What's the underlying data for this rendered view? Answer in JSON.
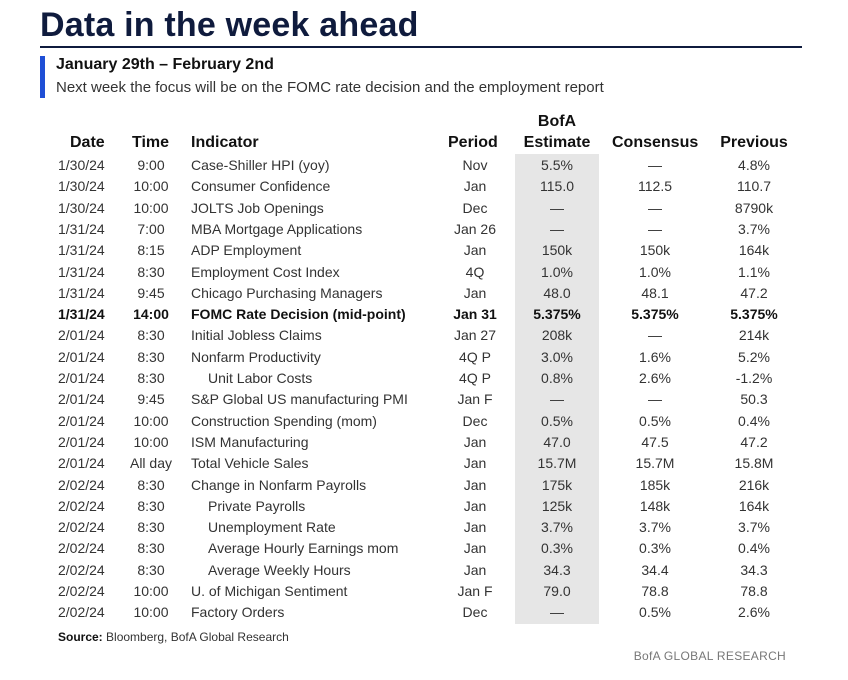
{
  "header": {
    "title": "Data in the week ahead",
    "date_range": "January 29th – February 2nd",
    "subtitle": "Next week the focus will be on the FOMC rate decision and the employment report"
  },
  "columns": {
    "date": "Date",
    "time": "Time",
    "indicator": "Indicator",
    "period": "Period",
    "bofa_line1": "BofA",
    "bofa_line2": "Estimate",
    "consensus": "Consensus",
    "previous": "Previous"
  },
  "rows": [
    {
      "date": "1/30/24",
      "time": "9:00",
      "indicator": "Case-Shiller HPI (yoy)",
      "period": "Nov",
      "bofa": "5.5%",
      "consensus": "—",
      "previous": "4.8%"
    },
    {
      "date": "1/30/24",
      "time": "10:00",
      "indicator": "Consumer Confidence",
      "period": "Jan",
      "bofa": "115.0",
      "consensus": "112.5",
      "previous": "110.7"
    },
    {
      "date": "1/30/24",
      "time": "10:00",
      "indicator": "JOLTS Job Openings",
      "period": "Dec",
      "bofa": "—",
      "consensus": "—",
      "previous": "8790k"
    },
    {
      "date": "1/31/24",
      "time": "7:00",
      "indicator": "MBA Mortgage Applications",
      "period": "Jan 26",
      "bofa": "—",
      "consensus": "—",
      "previous": "3.7%"
    },
    {
      "date": "1/31/24",
      "time": "8:15",
      "indicator": "ADP Employment",
      "period": "Jan",
      "bofa": "150k",
      "consensus": "150k",
      "previous": "164k"
    },
    {
      "date": "1/31/24",
      "time": "8:30",
      "indicator": "Employment Cost Index",
      "period": "4Q",
      "bofa": "1.0%",
      "consensus": "1.0%",
      "previous": "1.1%"
    },
    {
      "date": "1/31/24",
      "time": "9:45",
      "indicator": "Chicago Purchasing Managers",
      "period": "Jan",
      "bofa": "48.0",
      "consensus": "48.1",
      "previous": "47.2"
    },
    {
      "date": "1/31/24",
      "time": "14:00",
      "indicator": "FOMC Rate Decision (mid-point)",
      "period": "Jan 31",
      "bofa": "5.375%",
      "consensus": "5.375%",
      "previous": "5.375%",
      "bold": true
    },
    {
      "date": "2/01/24",
      "time": "8:30",
      "indicator": "Initial Jobless Claims",
      "period": "Jan 27",
      "bofa": "208k",
      "consensus": "—",
      "previous": "214k"
    },
    {
      "date": "2/01/24",
      "time": "8:30",
      "indicator": "Nonfarm Productivity",
      "period": "4Q P",
      "bofa": "3.0%",
      "consensus": "1.6%",
      "previous": "5.2%"
    },
    {
      "date": "2/01/24",
      "time": "8:30",
      "indicator": "Unit Labor Costs",
      "period": "4Q P",
      "bofa": "0.8%",
      "consensus": "2.6%",
      "previous": "-1.2%",
      "indent": true
    },
    {
      "date": "2/01/24",
      "time": "9:45",
      "indicator": "S&P Global US manufacturing PMI",
      "period": "Jan F",
      "bofa": "—",
      "consensus": "—",
      "previous": "50.3"
    },
    {
      "date": "2/01/24",
      "time": "10:00",
      "indicator": "Construction Spending (mom)",
      "period": "Dec",
      "bofa": "0.5%",
      "consensus": "0.5%",
      "previous": "0.4%"
    },
    {
      "date": "2/01/24",
      "time": "10:00",
      "indicator": "ISM Manufacturing",
      "period": "Jan",
      "bofa": "47.0",
      "consensus": "47.5",
      "previous": "47.2"
    },
    {
      "date": "2/01/24",
      "time": "All day",
      "indicator": "Total Vehicle Sales",
      "period": "Jan",
      "bofa": "15.7M",
      "consensus": "15.7M",
      "previous": "15.8M"
    },
    {
      "date": "2/02/24",
      "time": "8:30",
      "indicator": "Change in Nonfarm Payrolls",
      "period": "Jan",
      "bofa": "175k",
      "consensus": "185k",
      "previous": "216k"
    },
    {
      "date": "2/02/24",
      "time": "8:30",
      "indicator": "Private Payrolls",
      "period": "Jan",
      "bofa": "125k",
      "consensus": "148k",
      "previous": "164k",
      "indent": true
    },
    {
      "date": "2/02/24",
      "time": "8:30",
      "indicator": "Unemployment Rate",
      "period": "Jan",
      "bofa": "3.7%",
      "consensus": "3.7%",
      "previous": "3.7%",
      "indent": true
    },
    {
      "date": "2/02/24",
      "time": "8:30",
      "indicator": "Average Hourly Earnings mom",
      "period": "Jan",
      "bofa": "0.3%",
      "consensus": "0.3%",
      "previous": "0.4%",
      "indent": true
    },
    {
      "date": "2/02/24",
      "time": "8:30",
      "indicator": "Average Weekly Hours",
      "period": "Jan",
      "bofa": "34.3",
      "consensus": "34.4",
      "previous": "34.3",
      "indent": true
    },
    {
      "date": "2/02/24",
      "time": "10:00",
      "indicator": "U. of Michigan Sentiment",
      "period": "Jan F",
      "bofa": "79.0",
      "consensus": "78.8",
      "previous": "78.8"
    },
    {
      "date": "2/02/24",
      "time": "10:00",
      "indicator": "Factory Orders",
      "period": "Dec",
      "bofa": "—",
      "consensus": "0.5%",
      "previous": "2.6%"
    }
  ],
  "footer": {
    "source_label": "Source:",
    "source_text": " Bloomberg, BofA Global Research",
    "brand": "BofA GLOBAL RESEARCH"
  },
  "colors": {
    "title": "#0f1b3d",
    "accent_bar": "#1f4fd6",
    "bofa_column_shade": "#e6e6e6"
  }
}
